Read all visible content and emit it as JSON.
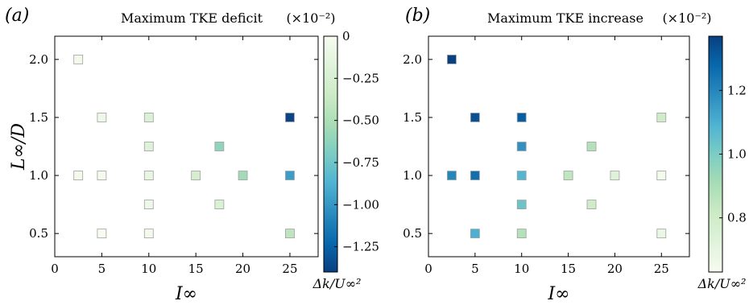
{
  "chart_data": [
    {
      "type": "scatter",
      "panel_label": "(a)",
      "title": "Maximum TKE deficit",
      "scale_note": "(×10⁻²)",
      "xlabel": "I∞",
      "ylabel": "L∞/D",
      "xlim": [
        0,
        28
      ],
      "ylim": [
        0.3,
        2.2
      ],
      "xticks": [
        0,
        5,
        10,
        15,
        20,
        25
      ],
      "yticks": [
        0.5,
        1.0,
        1.5,
        2.0
      ],
      "xtick_labels": [
        "0",
        "5",
        "10",
        "15",
        "20",
        "25"
      ],
      "ytick_labels": [
        "0.5",
        "1.0",
        "1.5",
        "2.0"
      ],
      "colorbar": {
        "label": "Δk/U∞²",
        "min": -1.4,
        "max": 0,
        "ticks": [
          0,
          -0.25,
          -0.5,
          -0.75,
          -1.0,
          -1.25
        ],
        "tick_labels": [
          "0",
          "−0.25",
          "−0.50",
          "−0.75",
          "−1.00",
          "−1.25"
        ],
        "colormap": "GnBu_r"
      },
      "points": [
        {
          "x": 2.5,
          "y": 2.0,
          "value": -0.03
        },
        {
          "x": 2.5,
          "y": 1.0,
          "value": -0.03
        },
        {
          "x": 5,
          "y": 1.5,
          "value": -0.07
        },
        {
          "x": 5,
          "y": 1.0,
          "value": -0.02
        },
        {
          "x": 5,
          "y": 0.5,
          "value": 0.0
        },
        {
          "x": 10,
          "y": 1.5,
          "value": -0.22
        },
        {
          "x": 10,
          "y": 1.25,
          "value": -0.2
        },
        {
          "x": 10,
          "y": 1.0,
          "value": -0.12
        },
        {
          "x": 10,
          "y": 0.75,
          "value": -0.07
        },
        {
          "x": 10,
          "y": 0.5,
          "value": -0.03
        },
        {
          "x": 15,
          "y": 1.0,
          "value": -0.28
        },
        {
          "x": 17.5,
          "y": 1.25,
          "value": -0.62
        },
        {
          "x": 17.5,
          "y": 0.75,
          "value": -0.22
        },
        {
          "x": 20,
          "y": 1.0,
          "value": -0.55
        },
        {
          "x": 25,
          "y": 1.5,
          "value": -1.38
        },
        {
          "x": 25,
          "y": 1.0,
          "value": -0.97
        },
        {
          "x": 25,
          "y": 0.5,
          "value": -0.42
        }
      ]
    },
    {
      "type": "scatter",
      "panel_label": "(b)",
      "title": "Maximum TKE increase",
      "scale_note": "(×10⁻²)",
      "xlabel": "I∞",
      "ylabel": "",
      "xlim": [
        0,
        28
      ],
      "ylim": [
        0.3,
        2.2
      ],
      "xticks": [
        0,
        5,
        10,
        15,
        20,
        25
      ],
      "yticks": [
        0.5,
        1.0,
        1.5,
        2.0
      ],
      "xtick_labels": [
        "0",
        "5",
        "10",
        "15",
        "20",
        "25"
      ],
      "ytick_labels": [
        "0.5",
        "1.0",
        "1.5",
        "2.0"
      ],
      "colorbar": {
        "label": "Δk/U∞²",
        "min": 0.63,
        "max": 1.37,
        "ticks": [
          0.8,
          1.0,
          1.2
        ],
        "tick_labels": [
          "0.8",
          "1.0",
          "1.2"
        ],
        "colormap": "GnBu"
      },
      "points": [
        {
          "x": 2.5,
          "y": 2.0,
          "value": 1.37
        },
        {
          "x": 2.5,
          "y": 1.0,
          "value": 1.2
        },
        {
          "x": 5,
          "y": 1.5,
          "value": 1.33
        },
        {
          "x": 5,
          "y": 1.0,
          "value": 1.26
        },
        {
          "x": 5,
          "y": 0.5,
          "value": 1.1
        },
        {
          "x": 10,
          "y": 1.5,
          "value": 1.3
        },
        {
          "x": 10,
          "y": 1.25,
          "value": 1.17
        },
        {
          "x": 10,
          "y": 1.0,
          "value": 1.08
        },
        {
          "x": 10,
          "y": 0.75,
          "value": 1.03
        },
        {
          "x": 10,
          "y": 0.5,
          "value": 0.88
        },
        {
          "x": 15,
          "y": 1.0,
          "value": 0.85
        },
        {
          "x": 17.5,
          "y": 1.25,
          "value": 0.88
        },
        {
          "x": 17.5,
          "y": 0.75,
          "value": 0.8
        },
        {
          "x": 20,
          "y": 1.0,
          "value": 0.73
        },
        {
          "x": 25,
          "y": 1.5,
          "value": 0.8
        },
        {
          "x": 25,
          "y": 1.0,
          "value": 0.65
        },
        {
          "x": 25,
          "y": 0.5,
          "value": 0.68
        }
      ]
    }
  ]
}
